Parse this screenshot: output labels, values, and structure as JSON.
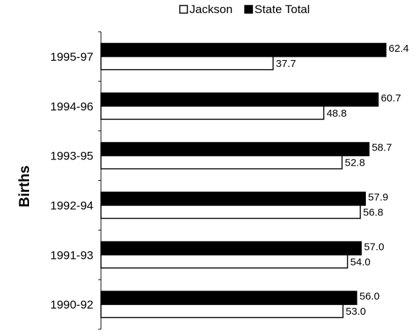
{
  "chart_data": {
    "type": "bar",
    "orientation": "horizontal",
    "categories": [
      "1995-97",
      "1994-96",
      "1993-95",
      "1992-94",
      "1991-93",
      "1990-92"
    ],
    "series": [
      {
        "name": "Jackson",
        "values": [
          37.7,
          48.8,
          52.8,
          56.8,
          54.0,
          53.0
        ],
        "color": "#ffffff"
      },
      {
        "name": "State Total",
        "values": [
          62.4,
          60.7,
          58.7,
          57.9,
          57.0,
          56.0
        ],
        "color": "#000000"
      }
    ],
    "value_labels": {
      "Jackson": [
        "37.7",
        "48.8",
        "52.8",
        "56.8",
        "54.0",
        "53.0"
      ],
      "State Total": [
        "62.4",
        "60.7",
        "58.7",
        "57.9",
        "57.0",
        "56.0"
      ]
    },
    "ylabel": "Births",
    "xlim": [
      0,
      65
    ],
    "grid": false,
    "legend_position": "top-center"
  }
}
